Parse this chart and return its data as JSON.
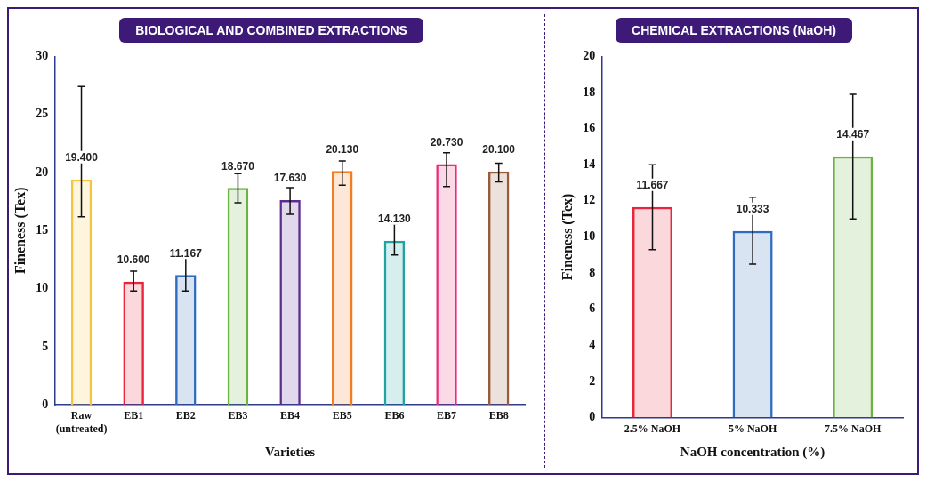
{
  "chart_data": [
    {
      "type": "bar",
      "title": "BIOLOGICAL AND COMBINED EXTRACTIONS",
      "xlabel": "Varieties",
      "ylabel": "Fineness (Tex)",
      "categories": [
        "Raw (untreated)",
        "EB1",
        "EB2",
        "EB3",
        "EB4",
        "EB5",
        "EB6",
        "EB7",
        "EB8"
      ],
      "values": [
        19.4,
        10.6,
        11.167,
        18.67,
        17.63,
        20.13,
        14.13,
        20.73,
        20.1
      ],
      "value_labels": [
        "19.400",
        "10.600",
        "11.167",
        "18.670",
        "17.630",
        "20.130",
        "14.130",
        "20.730",
        "20.100"
      ],
      "errors": [
        [
          16.2,
          27.4
        ],
        [
          9.8,
          11.5
        ],
        [
          9.8,
          13.2
        ],
        [
          17.4,
          19.9
        ],
        [
          16.4,
          18.7
        ],
        [
          18.9,
          21.0
        ],
        [
          12.9,
          15.6
        ],
        [
          18.8,
          21.7
        ],
        [
          19.2,
          20.8
        ]
      ],
      "colors": [
        "#f5c542",
        "#e8253a",
        "#2f6bbf",
        "#6cb33f",
        "#5b2d91",
        "#f47b20",
        "#1fa3a3",
        "#ec2a7b",
        "#9a5b3b"
      ],
      "ylim": [
        0,
        30
      ],
      "yticks": [
        0,
        5,
        10,
        15,
        20,
        25,
        30
      ],
      "grid": false,
      "legend": false
    },
    {
      "type": "bar",
      "title": "CHEMICAL EXTRACTIONS (NaOH)",
      "xlabel": "NaOH concentration (%)",
      "ylabel": "Fineness (Tex)",
      "categories": [
        "2.5% NaOH",
        "5% NaOH",
        "7.5% NaOH"
      ],
      "values": [
        11.667,
        10.333,
        14.467
      ],
      "value_labels": [
        "11.667",
        "10.333",
        "14.467"
      ],
      "errors": [
        [
          9.3,
          14.0
        ],
        [
          8.5,
          12.2
        ],
        [
          11.0,
          17.9
        ]
      ],
      "colors": [
        "#e8253a",
        "#2f6bbf",
        "#6cb33f"
      ],
      "ylim": [
        0,
        20
      ],
      "yticks": [
        0,
        2,
        4,
        6,
        8,
        10,
        12,
        14,
        16,
        18,
        20
      ],
      "grid": false,
      "legend": false
    }
  ]
}
